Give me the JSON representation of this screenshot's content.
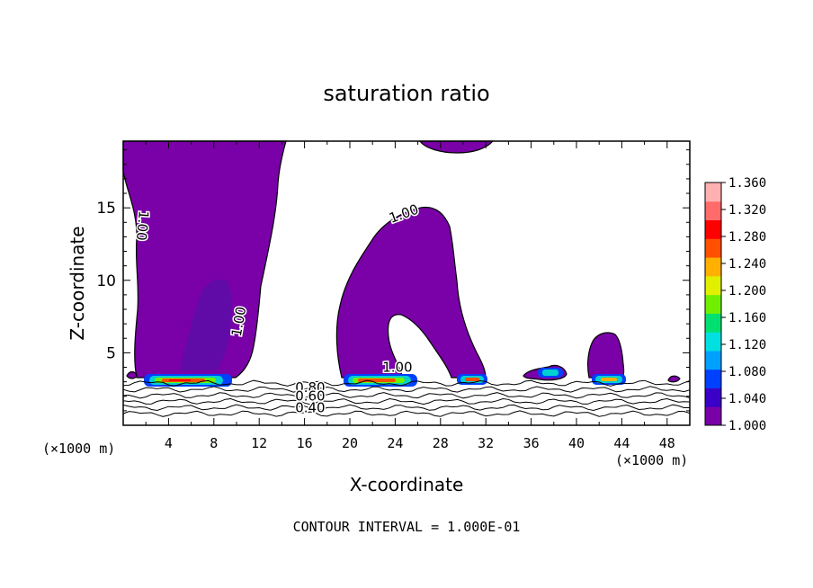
{
  "chart_data": {
    "type": "contour",
    "title": "saturation ratio",
    "xlabel": "X-coordinate",
    "ylabel": "Z-coordinate",
    "x_unit_label": "(×1000 m)",
    "footer": "CONTOUR INTERVAL = 1.000E-01",
    "xlim": [
      0,
      50
    ],
    "ylim": [
      0,
      19.6
    ],
    "xticks": [
      4,
      8,
      12,
      16,
      20,
      24,
      28,
      32,
      36,
      40,
      44,
      48
    ],
    "yticks": [
      5,
      10,
      15
    ],
    "colorbar": {
      "min": 1.0,
      "max": 1.36,
      "labels": [
        "1.360",
        "1.320",
        "1.280",
        "1.240",
        "1.200",
        "1.160",
        "1.120",
        "1.080",
        "1.040",
        "1.000"
      ],
      "colors": [
        "#7a00a8",
        "#3a00c8",
        "#0040ff",
        "#00a0ff",
        "#00e0e0",
        "#00e070",
        "#70f000",
        "#e0f000",
        "#ffb000",
        "#ff5000",
        "#ff0000",
        "#ff6a6a",
        "#ffb0b0"
      ]
    },
    "contour_labels": [
      {
        "text": "1.00",
        "x": 1.3,
        "z": 13.8,
        "angle": 95
      },
      {
        "text": "1.00",
        "x": 10.6,
        "z": 7.1,
        "angle": -80
      },
      {
        "text": "1.00",
        "x": 24.9,
        "z": 14.3,
        "angle": -20
      },
      {
        "text": "1.00",
        "x": 24.2,
        "z": 3.7,
        "angle": 0
      },
      {
        "text": "0.80",
        "x": 16.5,
        "z": 2.3,
        "angle": 0
      },
      {
        "text": "0.60",
        "x": 16.5,
        "z": 1.7,
        "angle": 0
      },
      {
        "text": "0.40",
        "x": 16.5,
        "z": 0.9,
        "angle": 0
      }
    ],
    "base_contour_levels": [
      0.4,
      0.5,
      0.6,
      0.7,
      0.8,
      0.9
    ],
    "colors": {
      "supersaturated": "#7a00a8",
      "contour": "#000000",
      "background": "#ffffff"
    }
  }
}
